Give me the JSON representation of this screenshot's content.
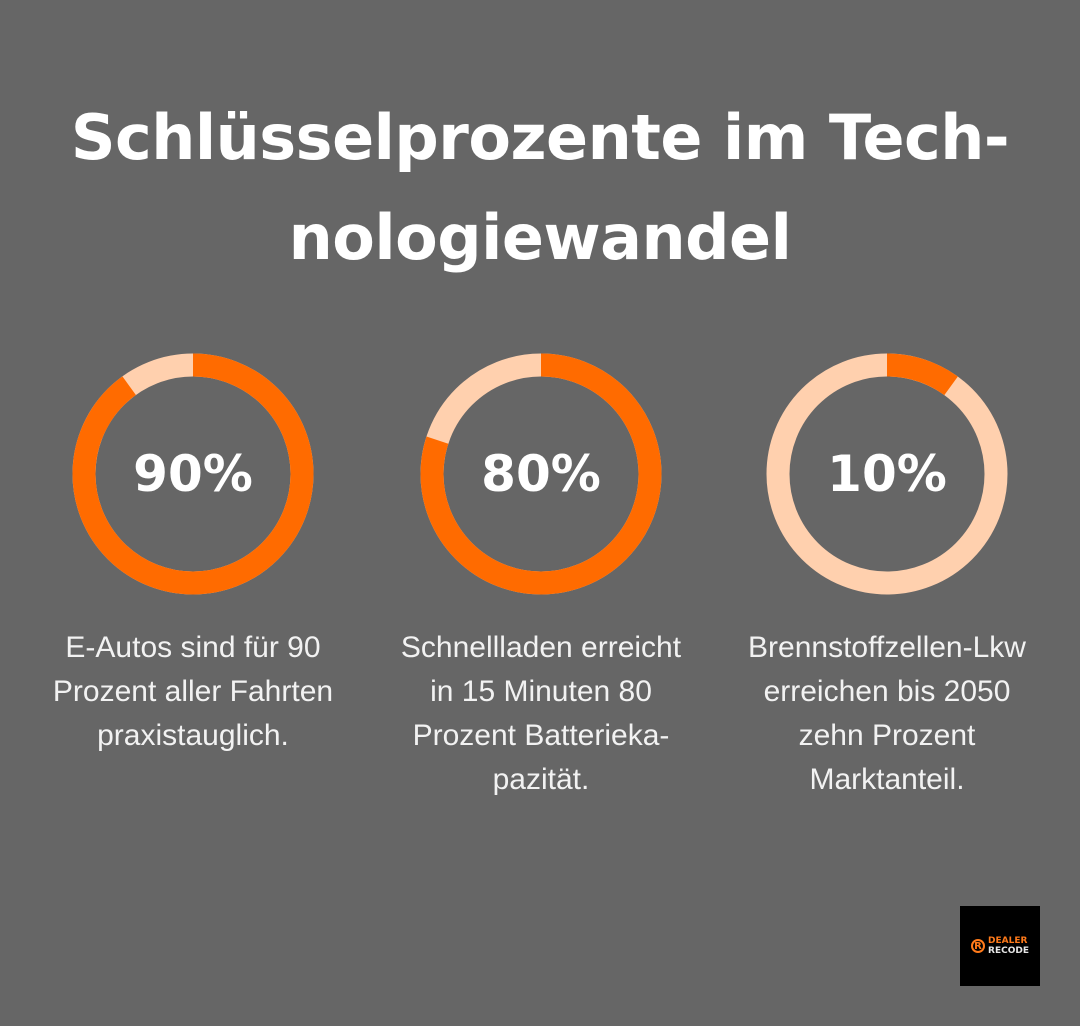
{
  "title_lines": [
    "Schlüsselprozente im Tech-",
    "nologiewandel"
  ],
  "colors": {
    "background": "#666666",
    "filled": "#ff6b00",
    "remaining": "#ffd0ae"
  },
  "chart_data": {
    "type": "donut",
    "items": [
      {
        "label": "90%",
        "value": 90,
        "caption": [
          "E-Autos sind für 90",
          "Prozent aller Fahrten",
          "praxistauglich."
        ]
      },
      {
        "label": "80%",
        "value": 80,
        "caption": [
          "Schnellladen erreicht",
          "in 15 Minuten 80",
          "Prozent Batterieka-",
          "pazität."
        ]
      },
      {
        "label": "10%",
        "value": 10,
        "caption": [
          "Brennstoffzellen-Lkw",
          "erreichen bis 2050",
          "zehn Prozent",
          "Marktanteil."
        ]
      }
    ]
  },
  "logo": {
    "line1": "DEALER",
    "line2": "RECODE",
    "mark": "R"
  }
}
